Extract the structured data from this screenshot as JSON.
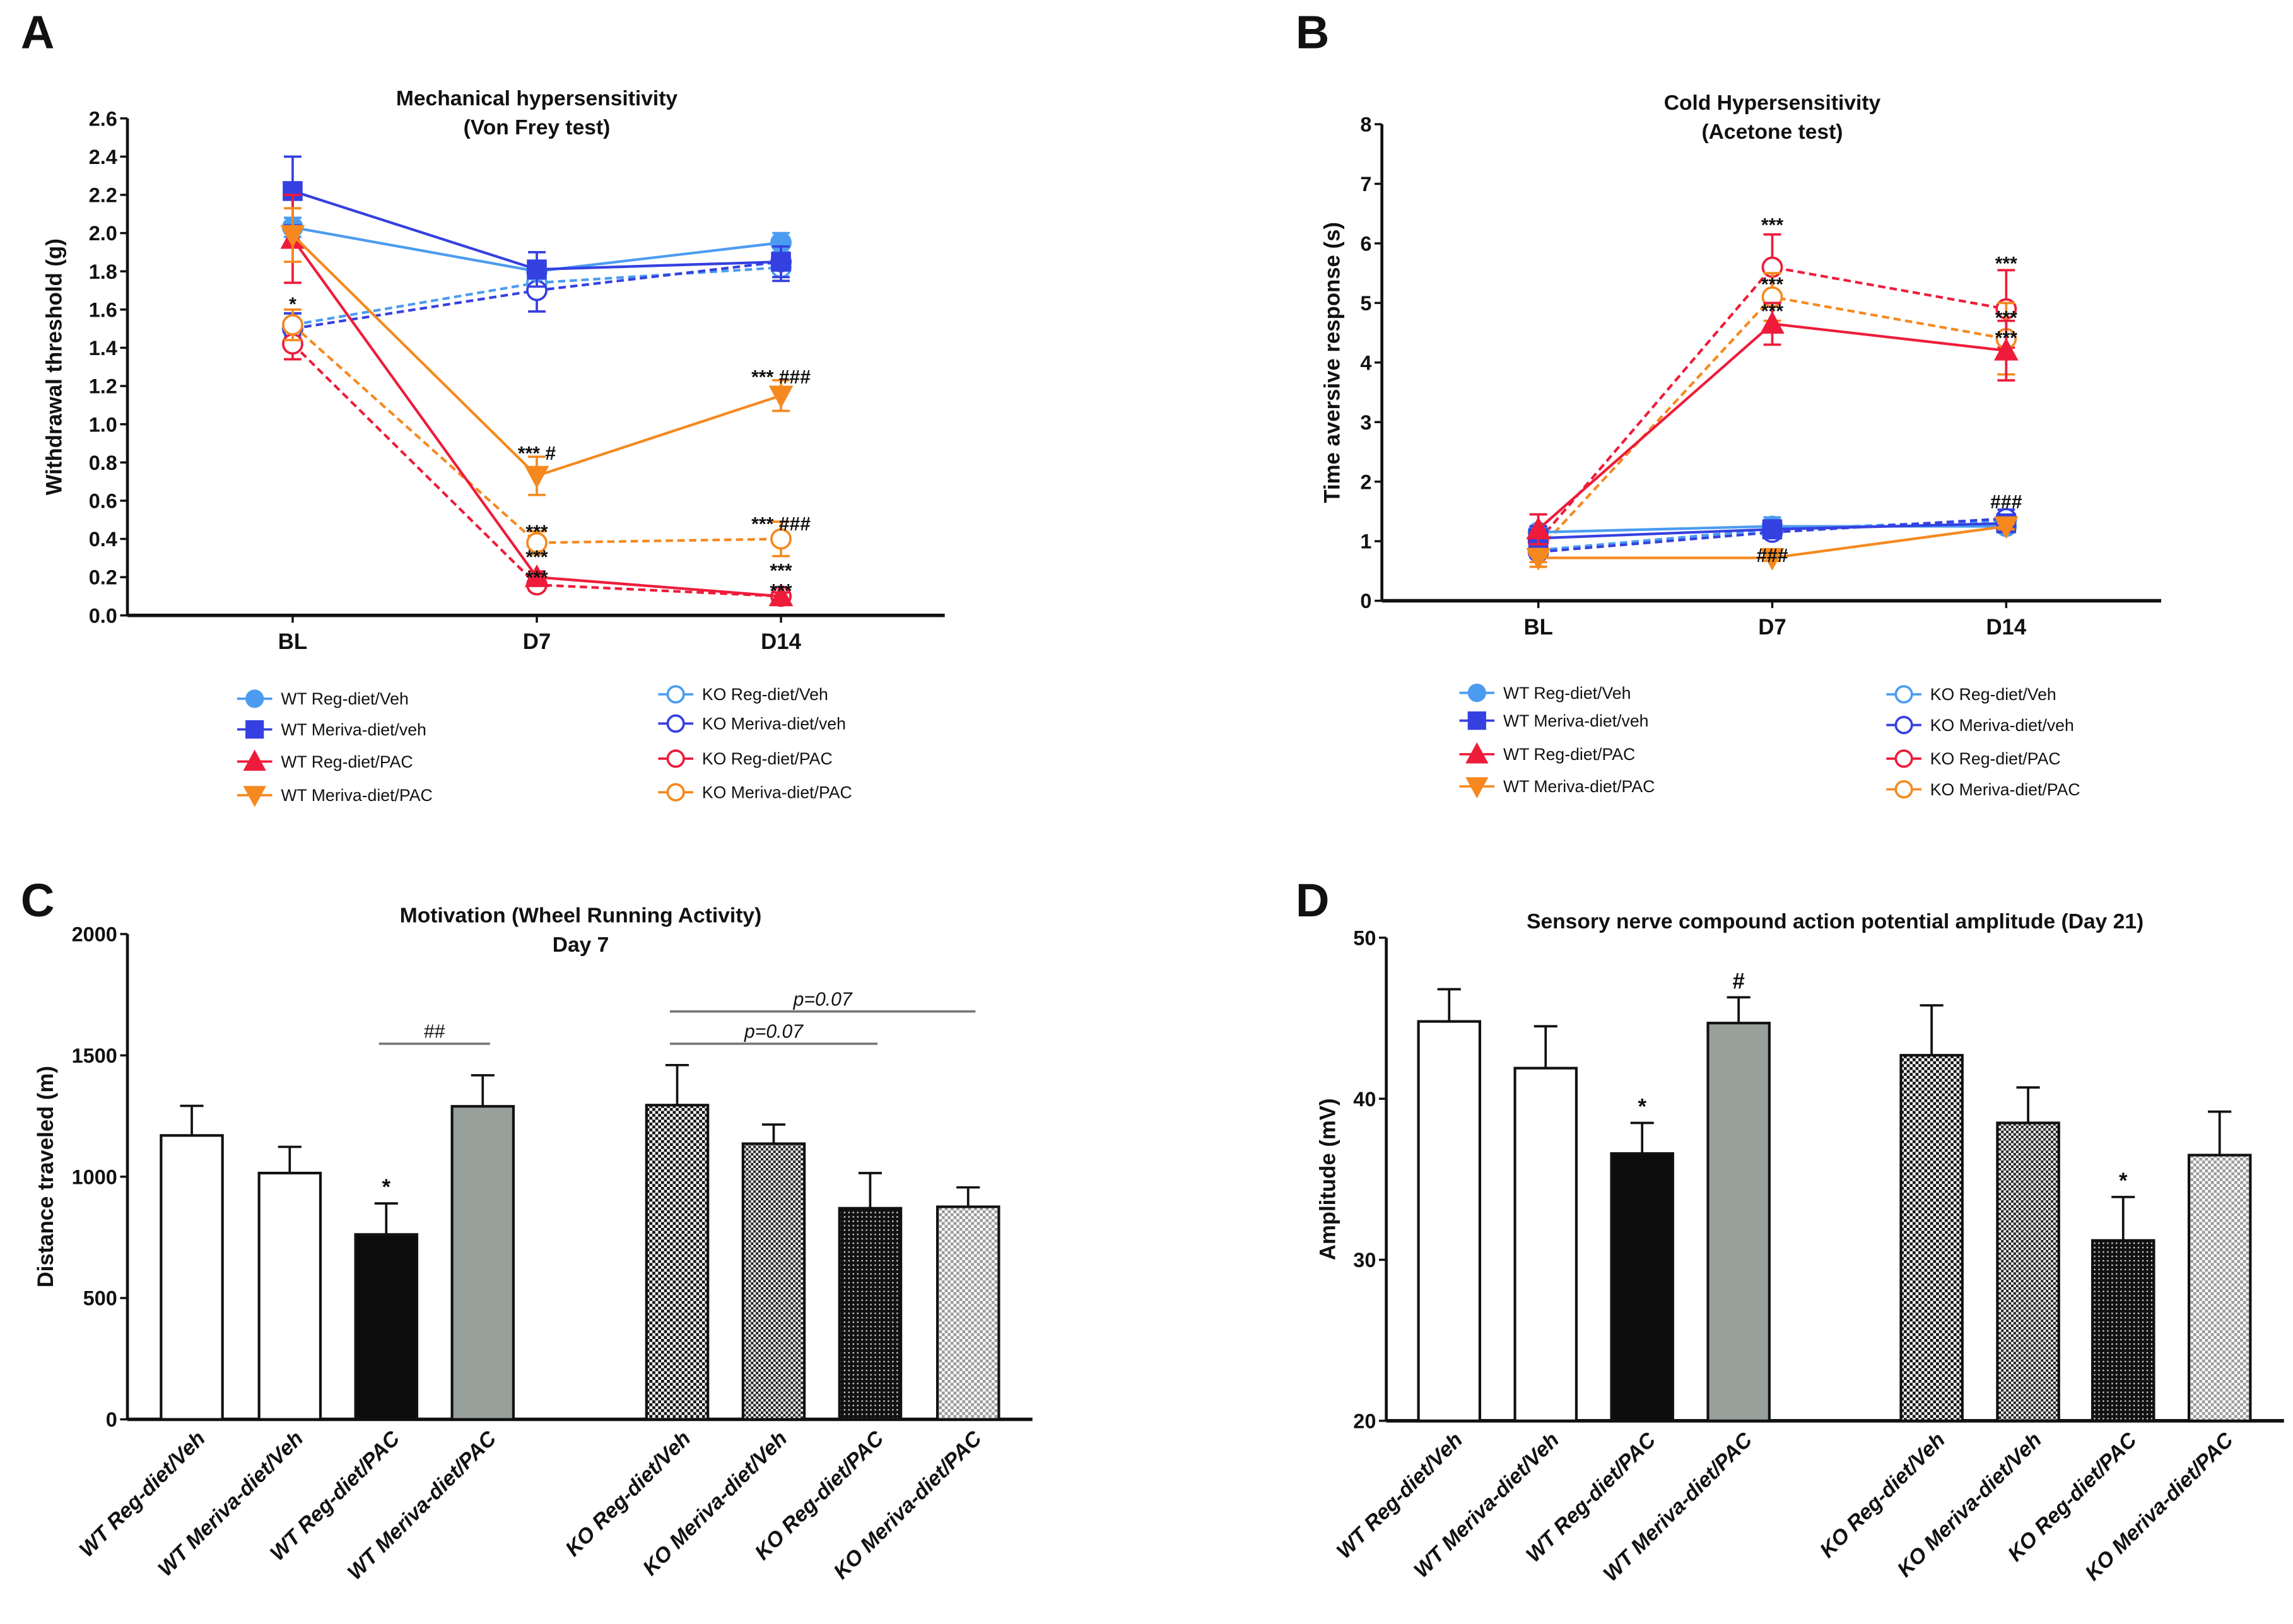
{
  "panel_letters": [
    "A",
    "B",
    "C",
    "D"
  ],
  "legend": [
    {
      "name": "WT Reg-diet/Veh",
      "color": "#4b9cf0",
      "marker": "circle",
      "filled": true,
      "dashed": false
    },
    {
      "name": "WT Meriva-diet/veh",
      "color": "#3540e0",
      "marker": "square",
      "filled": true,
      "dashed": false
    },
    {
      "name": "WT Reg-diet/PAC",
      "color": "#ee1c3a",
      "marker": "triangle-up",
      "filled": true,
      "dashed": false
    },
    {
      "name": "WT Meriva-diet/PAC",
      "color": "#f5891f",
      "marker": "triangle-down",
      "filled": true,
      "dashed": false
    },
    {
      "name": "KO Reg-diet/Veh",
      "color": "#4b9cf0",
      "marker": "circle",
      "filled": false,
      "dashed": true
    },
    {
      "name": "KO Meriva-diet/veh",
      "color": "#3540e0",
      "marker": "circle",
      "filled": false,
      "dashed": true
    },
    {
      "name": "KO Reg-diet/PAC",
      "color": "#ee1c3a",
      "marker": "circle",
      "filled": false,
      "dashed": true
    },
    {
      "name": "KO Meriva-diet/PAC",
      "color": "#f5891f",
      "marker": "circle",
      "filled": false,
      "dashed": true
    }
  ],
  "chart_data": [
    {
      "type": "line",
      "title": [
        "Mechanical hypersensitivity",
        "(Von Frey test)"
      ],
      "ylabel": "Withdrawal threshold (g)",
      "xlabel": "",
      "categories": [
        "BL",
        "D7",
        "D14"
      ],
      "ylim": [
        0,
        2.6
      ],
      "yticks": [
        "0.0",
        "0.2",
        "0.4",
        "0.6",
        "0.8",
        "1.0",
        "1.2",
        "1.4",
        "1.6",
        "1.8",
        "2.0",
        "2.2",
        "2.4",
        "2.6"
      ],
      "series": [
        {
          "name": "WT Reg-diet/Veh",
          "values": [
            2.03,
            1.8,
            1.95
          ],
          "errors": [
            0.05,
            0.04,
            0.05
          ]
        },
        {
          "name": "WT Meriva-diet/veh",
          "values": [
            2.22,
            1.81,
            1.85
          ],
          "errors": [
            0.18,
            0.09,
            0.08
          ]
        },
        {
          "name": "WT Reg-diet/PAC",
          "values": [
            1.97,
            0.2,
            0.1
          ],
          "errors": [
            0.23,
            0.03,
            0.02
          ]
        },
        {
          "name": "WT Meriva-diet/PAC",
          "values": [
            1.99,
            0.73,
            1.15
          ],
          "errors": [
            0.14,
            0.1,
            0.08
          ]
        },
        {
          "name": "KO Reg-diet/Veh",
          "values": [
            1.52,
            1.74,
            1.82
          ],
          "errors": [
            0.06,
            0.05,
            0.05
          ]
        },
        {
          "name": "KO Meriva-diet/veh",
          "values": [
            1.5,
            1.7,
            1.85
          ],
          "errors": [
            0.08,
            0.11,
            0.1
          ]
        },
        {
          "name": "KO Reg-diet/PAC",
          "values": [
            1.42,
            0.16,
            0.1
          ],
          "errors": [
            0.08,
            0.03,
            0.02
          ]
        },
        {
          "name": "KO Meriva-diet/PAC",
          "values": [
            1.52,
            0.38,
            0.4
          ],
          "errors": [
            0.08,
            0.06,
            0.09
          ]
        }
      ],
      "annotations": [
        {
          "x": "BL",
          "y": 1.64,
          "text": "*"
        },
        {
          "x": "D7",
          "y": 0.86,
          "text": "*** #"
        },
        {
          "x": "D7",
          "y": 0.45,
          "text": "***"
        },
        {
          "x": "D7",
          "y": 0.26,
          "text": "***"
        },
        {
          "x": "D7",
          "y": 0.21,
          "text": "***"
        },
        {
          "x": "D14",
          "y": 1.26,
          "text": "*** ###"
        },
        {
          "x": "D14",
          "y": 0.49,
          "text": "*** ###"
        },
        {
          "x": "D14",
          "y": 0.19,
          "text": "***"
        },
        {
          "x": "D14",
          "y": 0.14,
          "text": "***"
        }
      ]
    },
    {
      "type": "line",
      "title": [
        "Cold Hypersensitivity",
        "(Acetone test)"
      ],
      "ylabel": "Time aversive response (s)",
      "xlabel": "",
      "categories": [
        "BL",
        "D7",
        "D14"
      ],
      "ylim": [
        0,
        8
      ],
      "yticks": [
        "0",
        "1",
        "2",
        "3",
        "4",
        "5",
        "6",
        "7",
        "8"
      ],
      "series": [
        {
          "name": "WT Reg-diet/Veh",
          "values": [
            1.15,
            1.25,
            1.25
          ],
          "errors": [
            0.3,
            0.15,
            0.1
          ]
        },
        {
          "name": "WT Meriva-diet/veh",
          "values": [
            1.05,
            1.2,
            1.3
          ],
          "errors": [
            0.2,
            0.15,
            0.1
          ]
        },
        {
          "name": "WT Reg-diet/PAC",
          "values": [
            1.2,
            4.65,
            4.2
          ],
          "errors": [
            0.25,
            0.35,
            0.5
          ]
        },
        {
          "name": "WT Meriva-diet/PAC",
          "values": [
            0.72,
            0.72,
            1.25
          ],
          "errors": [
            0.15,
            0.05,
            0.05
          ]
        },
        {
          "name": "KO Reg-diet/Veh",
          "values": [
            0.85,
            1.2,
            1.35
          ],
          "errors": [
            0.1,
            0.1,
            0.1
          ]
        },
        {
          "name": "KO Meriva-diet/veh",
          "values": [
            0.82,
            1.15,
            1.38
          ],
          "errors": [
            0.1,
            0.1,
            0.15
          ]
        },
        {
          "name": "KO Reg-diet/PAC",
          "values": [
            1.0,
            5.6,
            4.9
          ],
          "errors": [
            0.2,
            0.55,
            0.65
          ]
        },
        {
          "name": "KO Meriva-diet/PAC",
          "values": [
            0.85,
            5.1,
            4.4
          ],
          "errors": [
            0.2,
            0.4,
            0.6
          ]
        }
      ],
      "annotations": [
        {
          "x": "D7",
          "y": 6.35,
          "text": "***"
        },
        {
          "x": "D7",
          "y": 5.35,
          "text": "***"
        },
        {
          "x": "D7",
          "y": 4.9,
          "text": "***"
        },
        {
          "x": "D7",
          "y": 0.8,
          "text": "###"
        },
        {
          "x": "D14",
          "y": 5.7,
          "text": "***"
        },
        {
          "x": "D14",
          "y": 4.7,
          "text": "***"
        },
        {
          "x": "D14",
          "y": 4.45,
          "text": "***"
        },
        {
          "x": "D14",
          "y": 1.7,
          "text": "###"
        }
      ]
    },
    {
      "type": "bar",
      "title": [
        "Motivation (Wheel Running Activity)",
        "Day 7"
      ],
      "ylabel": "Distance traveled (m)",
      "xlabel": "",
      "categories": [
        "WT Reg-diet/Veh",
        "WT Meriva-diet/Veh",
        "WT Reg-diet/PAC",
        "WT Meriva-diet/PAC",
        "KO Reg-diet/Veh",
        "KO Meriva-diet/Veh",
        "KO Reg-diet/PAC",
        "KO Meriva-diet/PAC"
      ],
      "values": [
        1170,
        1015,
        762,
        1290,
        1295,
        1136,
        870,
        876
      ],
      "errors": [
        122,
        108,
        128,
        128,
        165,
        79,
        145,
        80
      ],
      "ylim": [
        0,
        2000
      ],
      "yticks": [
        "0",
        "500",
        "1000",
        "1500",
        "2000"
      ],
      "annotations": [
        {
          "bar": 2,
          "text": "*"
        }
      ],
      "brackets": [
        {
          "from": 2,
          "to": 3,
          "y": 1548,
          "text": "##",
          "italic": false
        },
        {
          "from": 4,
          "to": 6,
          "y": 1548,
          "text": "p=0.07",
          "italic": true
        },
        {
          "from": 4,
          "to": 7,
          "y": 1681,
          "text": "p=0.07",
          "italic": true
        }
      ]
    },
    {
      "type": "bar",
      "title": [
        "Sensory nerve compound action potential amplitude (Day 21)"
      ],
      "ylabel": "Amplitude (mV)",
      "xlabel": "",
      "categories": [
        "WT Reg-diet/Veh",
        "WT Meriva-diet/Veh",
        "WT Reg-diet/PAC",
        "WT Meriva-diet/PAC",
        "KO Reg-diet/Veh",
        "KO Meriva-diet/Veh",
        "KO Reg-diet/PAC",
        "KO Meriva-diet/PAC"
      ],
      "values": [
        44.8,
        41.9,
        36.6,
        44.7,
        42.7,
        38.5,
        31.2,
        36.5
      ],
      "errors": [
        2.0,
        2.6,
        1.9,
        1.6,
        3.1,
        2.2,
        2.7,
        2.7
      ],
      "ylim": [
        20,
        50
      ],
      "yticks": [
        "20",
        "30",
        "40",
        "50"
      ],
      "annotations": [
        {
          "bar": 2,
          "text": "*"
        },
        {
          "bar": 3,
          "text": "#"
        },
        {
          "bar": 6,
          "text": "*"
        }
      ],
      "brackets": []
    }
  ]
}
